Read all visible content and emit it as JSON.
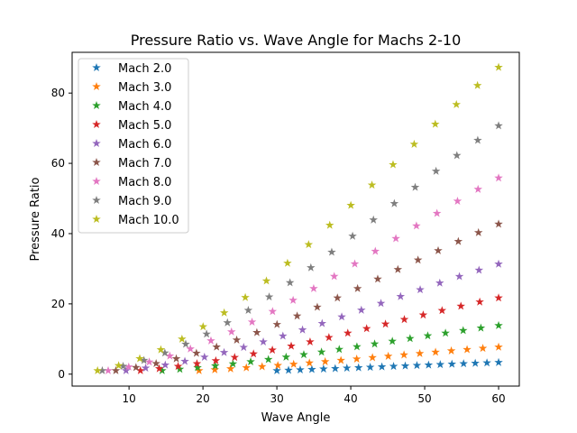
{
  "chart_data": {
    "type": "scatter",
    "title": "Pressure Ratio vs. Wave Angle for Machs 2-10",
    "xlabel": "Wave Angle",
    "ylabel": "Pressure Ratio",
    "xlim": [
      2.3,
      62.8
    ],
    "ylim": [
      -3.4,
      91.6
    ],
    "xticks": [
      10,
      20,
      30,
      40,
      50,
      60
    ],
    "yticks": [
      0,
      20,
      40,
      60,
      80
    ],
    "grid": false,
    "legend_position": "top-left",
    "marker": "star",
    "gamma": 1.4,
    "theta_max": 60,
    "points_per_series": 20,
    "series": [
      {
        "name": "Mach 2.0",
        "mach": 2.0,
        "color": "#1f77b4"
      },
      {
        "name": "Mach 3.0",
        "mach": 3.0,
        "color": "#ff7f0e"
      },
      {
        "name": "Mach 4.0",
        "mach": 4.0,
        "color": "#2ca02c"
      },
      {
        "name": "Mach 5.0",
        "mach": 5.0,
        "color": "#d62728"
      },
      {
        "name": "Mach 6.0",
        "mach": 6.0,
        "color": "#9467bd"
      },
      {
        "name": "Mach 7.0",
        "mach": 7.0,
        "color": "#8c564b"
      },
      {
        "name": "Mach 8.0",
        "mach": 8.0,
        "color": "#e377c2"
      },
      {
        "name": "Mach 9.0",
        "mach": 9.0,
        "color": "#7f7f7f"
      },
      {
        "name": "Mach 10.0",
        "mach": 10.0,
        "color": "#bcbd22"
      }
    ]
  }
}
